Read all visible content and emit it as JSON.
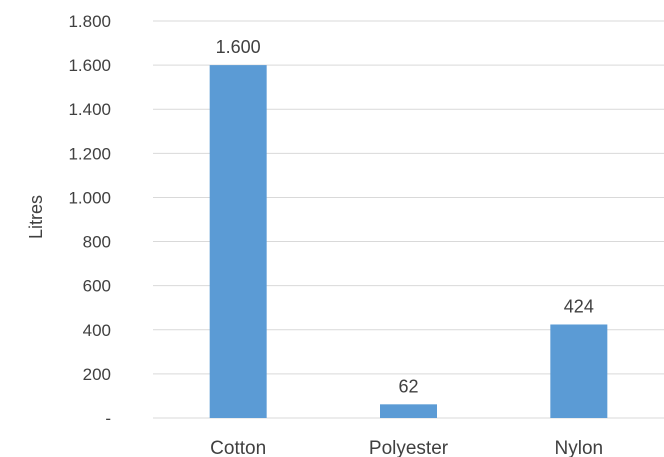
{
  "chart_data": {
    "type": "bar",
    "categories": [
      "Cotton",
      "Polyester",
      "Nylon"
    ],
    "values": [
      1600,
      62,
      424
    ],
    "data_labels": [
      "1.600",
      "62",
      "424"
    ],
    "ylabel": "Litres",
    "xlabel": "",
    "title": "",
    "ylim": [
      0,
      1800
    ],
    "yticks": [
      0,
      200,
      400,
      600,
      800,
      1000,
      1200,
      1400,
      1600,
      1800
    ],
    "ytick_labels": [
      "-",
      "200",
      "400",
      "600",
      "800",
      "1.000",
      "1.200",
      "1.400",
      "1.600",
      "1.800"
    ],
    "grid": true,
    "legend": "none",
    "bar_color": "#5b9bd5"
  }
}
